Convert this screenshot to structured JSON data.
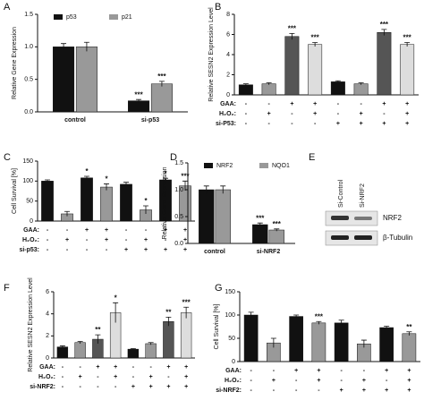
{
  "chart_data": [
    {
      "panel": "A",
      "type": "bar",
      "ylabel": "Relative Gene Expression",
      "ylim": [
        0,
        1.5
      ],
      "yticks": [
        {
          "value": 0,
          "label": "0.0"
        },
        {
          "value": 0.5,
          "label": "0.5"
        },
        {
          "value": 1,
          "label": "1.0"
        },
        {
          "value": 1.5,
          "label": "1.5"
        }
      ],
      "categories": [
        "control",
        "si-p53"
      ],
      "series": [
        {
          "name": "p53",
          "color": "#111111",
          "values": [
            1.0,
            0.17
          ],
          "errors": [
            0.05,
            0.02
          ],
          "stars": [
            null,
            "***"
          ],
          "star_color": "#111111"
        },
        {
          "name": "p21",
          "color": "#999999",
          "values": [
            1.0,
            0.43
          ],
          "errors": [
            0.07,
            0.04
          ],
          "stars": [
            null,
            "***"
          ],
          "star_color": "#e83030"
        }
      ]
    },
    {
      "panel": "B",
      "type": "bar",
      "ylabel": "Relative SESN2 Expression Level",
      "ylim": [
        0,
        8
      ],
      "yticks": [
        0,
        2,
        4,
        6,
        8
      ],
      "categories": [
        null,
        null,
        null,
        null,
        null,
        null,
        null,
        null
      ],
      "series": [
        {
          "colors": [
            "#111111",
            "#999999",
            "#555555",
            "#dddddd",
            "#111111",
            "#999999",
            "#555555",
            "#dddddd"
          ],
          "values": [
            1.0,
            1.1,
            5.8,
            5.0,
            1.3,
            1.1,
            6.2,
            5.0
          ],
          "errors": [
            0.1,
            0.1,
            0.3,
            0.2,
            0.1,
            0.1,
            0.3,
            0.2
          ],
          "stars": [
            null,
            null,
            "***",
            "***",
            null,
            null,
            "***",
            "***"
          ]
        }
      ],
      "conditions": [
        {
          "label": "GAA:",
          "signs": [
            "-",
            "-",
            "+",
            "+",
            "-",
            "-",
            "+",
            "+"
          ]
        },
        {
          "label": "H₂O₂:",
          "signs": [
            "-",
            "+",
            "-",
            "+",
            "-",
            "+",
            "-",
            "+"
          ]
        },
        {
          "label": "si-P53:",
          "signs": [
            "-",
            "-",
            "-",
            "-",
            "+",
            "+",
            "+",
            "+"
          ]
        }
      ]
    },
    {
      "panel": "C",
      "type": "bar",
      "ylabel": "Cell Survival [%]",
      "ylim": [
        0,
        150
      ],
      "yticks": [
        0,
        50,
        100,
        150
      ],
      "categories": [
        null,
        null,
        null,
        null,
        null,
        null,
        null,
        null
      ],
      "series": [
        {
          "colors": [
            "#111111",
            "#999999",
            "#111111",
            "#999999",
            "#111111",
            "#999999",
            "#111111",
            "#999999"
          ],
          "values": [
            100,
            18,
            108,
            85,
            92,
            28,
            103,
            88
          ],
          "errors": [
            3,
            6,
            4,
            8,
            5,
            10,
            4,
            12
          ],
          "stars": [
            null,
            null,
            "*",
            "*",
            null,
            "*",
            "*",
            "***"
          ]
        }
      ],
      "conditions": [
        {
          "label": "GAA:",
          "signs": [
            "-",
            "-",
            "+",
            "+",
            "-",
            "-",
            "+",
            "+"
          ]
        },
        {
          "label": "H₂O₂:",
          "signs": [
            "-",
            "+",
            "-",
            "+",
            "-",
            "+",
            "-",
            "+"
          ]
        },
        {
          "label": "si-p53:",
          "signs": [
            "-",
            "-",
            "-",
            "-",
            "+",
            "+",
            "+",
            "+"
          ]
        }
      ]
    },
    {
      "panel": "D",
      "type": "bar",
      "ylabel": "Relative Gene Expression",
      "ylim": [
        0,
        1.5
      ],
      "yticks": [
        {
          "value": 0,
          "label": "0.0"
        },
        {
          "value": 0.5,
          "label": "0.5"
        },
        {
          "value": 1,
          "label": "1.0"
        },
        {
          "value": 1.5,
          "label": "1.5"
        }
      ],
      "categories": [
        "control",
        "si-NRF2"
      ],
      "series": [
        {
          "name": "NRF2",
          "color": "#111111",
          "values": [
            1.0,
            0.35
          ],
          "errors": [
            0.07,
            0.03
          ],
          "stars": [
            null,
            "***"
          ],
          "star_color": "#111111"
        },
        {
          "name": "NQO1",
          "color": "#999999",
          "values": [
            1.0,
            0.25
          ],
          "errors": [
            0.07,
            0.02
          ],
          "stars": [
            null,
            "***"
          ],
          "star_color": "#e83030"
        }
      ]
    },
    {
      "panel": "F",
      "type": "bar",
      "ylabel": "Relative SESN2 Expression Level",
      "ylim": [
        0,
        6
      ],
      "yticks": [
        0,
        2,
        4,
        6
      ],
      "categories": [
        null,
        null,
        null,
        null,
        null,
        null,
        null,
        null
      ],
      "series": [
        {
          "colors": [
            "#111111",
            "#999999",
            "#555555",
            "#dddddd",
            "#111111",
            "#999999",
            "#555555",
            "#dddddd"
          ],
          "values": [
            1.0,
            1.4,
            1.7,
            4.1,
            0.8,
            1.3,
            3.3,
            4.1
          ],
          "errors": [
            0.1,
            0.1,
            0.4,
            0.9,
            0.05,
            0.1,
            0.4,
            0.5
          ],
          "stars": [
            null,
            null,
            "**",
            "*",
            null,
            null,
            "**",
            "***"
          ]
        }
      ],
      "conditions": [
        {
          "label": "GAA:",
          "signs": [
            "-",
            "-",
            "+",
            "+",
            "-",
            "-",
            "+",
            "+"
          ]
        },
        {
          "label": "H₂O₂:",
          "signs": [
            "-",
            "+",
            "-",
            "+",
            "-",
            "+",
            "-",
            "+"
          ]
        },
        {
          "label": "si-NRF2:",
          "signs": [
            "-",
            "-",
            "-",
            "-",
            "+",
            "+",
            "+",
            "+"
          ]
        }
      ]
    },
    {
      "panel": "G",
      "type": "bar",
      "ylabel": "Cell Survival [%]",
      "ylim": [
        0,
        150
      ],
      "yticks": [
        0,
        50,
        100,
        150
      ],
      "categories": [
        null,
        null,
        null,
        null,
        null,
        null,
        null,
        null
      ],
      "series": [
        {
          "colors": [
            "#111111",
            "#999999",
            "#111111",
            "#999999",
            "#111111",
            "#999999",
            "#111111",
            "#999999"
          ],
          "values": [
            100,
            40,
            97,
            83,
            83,
            38,
            73,
            60
          ],
          "errors": [
            6,
            10,
            3,
            3,
            6,
            8,
            3,
            4
          ],
          "stars": [
            null,
            null,
            null,
            "***",
            null,
            null,
            null,
            "**"
          ]
        }
      ],
      "conditions": [
        {
          "label": "GAA:",
          "signs": [
            "-",
            "-",
            "+",
            "+",
            "-",
            "-",
            "+",
            "+"
          ]
        },
        {
          "label": "H₂O₂:",
          "signs": [
            "-",
            "+",
            "-",
            "+",
            "-",
            "+",
            "-",
            "+"
          ]
        },
        {
          "label": "si-NRF2:",
          "signs": [
            "-",
            "-",
            "-",
            "-",
            "+",
            "+",
            "+",
            "+"
          ]
        }
      ]
    }
  ],
  "blot": {
    "panel": "E",
    "lanes": [
      "Si-Control",
      "Si-NRF2"
    ],
    "bands": [
      "NRF2",
      "β-Tubulin"
    ]
  }
}
